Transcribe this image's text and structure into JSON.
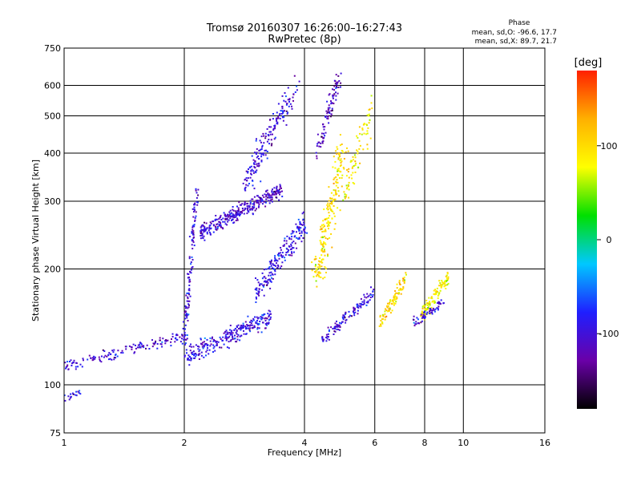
{
  "title_line1": "Tromsø 20160307 16:26:00–16:27:43",
  "title_line2": "RwPretec (8p)",
  "phase_box": {
    "heading": "Phase",
    "line_o": "mean, sd,O: -96.6, 17.7",
    "line_x": "mean, sd,X: 89.7, 21.7"
  },
  "colorbar": {
    "label": "[deg]",
    "ticks": [
      "100",
      "0",
      "-100"
    ],
    "stops": [
      "#000000",
      "#6a00a8",
      "#1f1fff",
      "#00c8ff",
      "#00e000",
      "#ffff00",
      "#ffb000",
      "#ff2000"
    ]
  },
  "chart_data": {
    "type": "scatter",
    "xlabel": "Frequency [MHz]",
    "ylabel": "Stationary phase Virtual Height [km]",
    "x_scale": "log2",
    "y_scale": "log",
    "xlim": [
      1,
      16
    ],
    "ylim": [
      75,
      750
    ],
    "x_ticks": [
      "1",
      "2",
      "4",
      "6",
      "8",
      "10",
      "16"
    ],
    "y_ticks": [
      "75",
      "100",
      "200",
      "300",
      "400",
      "500",
      "600",
      "750"
    ],
    "grid": true,
    "clusters": [
      {
        "name": "o-low",
        "phase": -100,
        "f_start": 1.0,
        "f_end": 2.05,
        "h_start": 112,
        "h_end": 135,
        "spread": 0.035,
        "n": 140
      },
      {
        "name": "o-bottom",
        "phase": -96,
        "f_start": 1.0,
        "f_end": 1.1,
        "h_start": 92,
        "h_end": 96,
        "spread": 0.02,
        "n": 18
      },
      {
        "name": "o-mid",
        "phase": -95,
        "f_start": 2.0,
        "f_end": 3.3,
        "h_start": 118,
        "h_end": 150,
        "spread": 0.06,
        "n": 260
      },
      {
        "name": "o-rise",
        "phase": -100,
        "f_start": 2.0,
        "f_end": 2.15,
        "h_start": 130,
        "h_end": 320,
        "spread": 0.05,
        "n": 120
      },
      {
        "name": "o-dense",
        "phase": -105,
        "f_start": 2.2,
        "f_end": 3.5,
        "h_start": 250,
        "h_end": 320,
        "spread": 0.05,
        "n": 320
      },
      {
        "name": "o-upper",
        "phase": -100,
        "f_start": 2.8,
        "f_end": 3.8,
        "h_start": 320,
        "h_end": 600,
        "spread": 0.09,
        "n": 180
      },
      {
        "name": "o-F2",
        "phase": -95,
        "f_start": 3.0,
        "f_end": 4.0,
        "h_start": 170,
        "h_end": 260,
        "spread": 0.08,
        "n": 200
      },
      {
        "name": "o-high",
        "phase": -110,
        "f_start": 4.3,
        "f_end": 4.9,
        "h_start": 400,
        "h_end": 640,
        "spread": 0.07,
        "n": 90
      },
      {
        "name": "o-right",
        "phase": -100,
        "f_start": 4.4,
        "f_end": 6.0,
        "h_start": 130,
        "h_end": 175,
        "spread": 0.04,
        "n": 120
      },
      {
        "name": "x-F",
        "phase": 95,
        "f_start": 4.3,
        "f_end": 5.0,
        "h_start": 190,
        "h_end": 420,
        "spread": 0.12,
        "n": 220
      },
      {
        "name": "x-upper",
        "phase": 90,
        "f_start": 5.0,
        "f_end": 5.9,
        "h_start": 300,
        "h_end": 520,
        "spread": 0.1,
        "n": 80
      },
      {
        "name": "x-right",
        "phase": 100,
        "f_start": 6.2,
        "f_end": 7.2,
        "h_start": 145,
        "h_end": 190,
        "spread": 0.05,
        "n": 90
      },
      {
        "name": "x-far",
        "phase": 85,
        "f_start": 7.8,
        "f_end": 9.2,
        "h_start": 150,
        "h_end": 190,
        "spread": 0.05,
        "n": 110
      },
      {
        "name": "o-far",
        "phase": -95,
        "f_start": 7.5,
        "f_end": 9.0,
        "h_start": 145,
        "h_end": 165,
        "spread": 0.03,
        "n": 60
      }
    ]
  }
}
